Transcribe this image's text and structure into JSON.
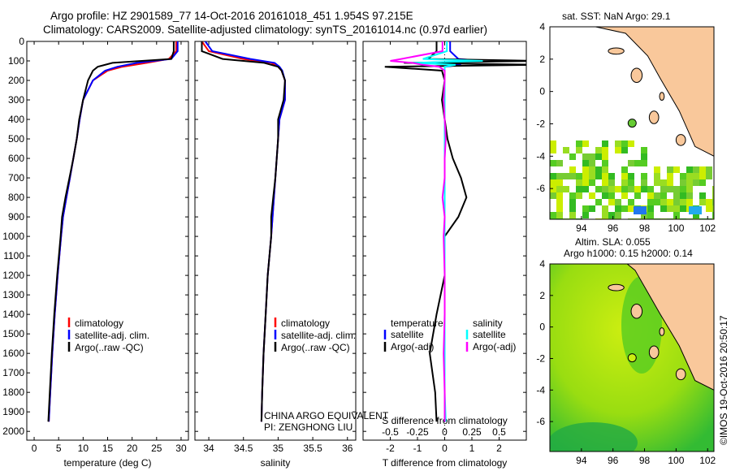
{
  "title": {
    "line1": "Argo profile: HZ 2901589_77 14-Oct-2016 20161018_451 1.954S 97.215E",
    "line2": "Climatology: CARS2009. Satellite-adjusted climatology: synTS_20161014.nc (0.97d earlier)"
  },
  "colors": {
    "clim": "#ff0000",
    "sat": "#0000ff",
    "argo": "#000000",
    "s_sat": "#00ffff",
    "s_argo": "#ff00ff",
    "land": "#f9c89b"
  },
  "chart_data": [
    {
      "type": "line",
      "id": "temperature",
      "xlabel": "temperature (deg C)",
      "ylabel": "depth",
      "xlim": [
        -1.5,
        31.5
      ],
      "ylim": [
        0,
        2045
      ],
      "xticks": [
        0,
        5,
        10,
        15,
        20,
        25,
        30
      ],
      "yticks": [
        0,
        100,
        200,
        300,
        400,
        500,
        600,
        700,
        800,
        900,
        1000,
        1100,
        1200,
        1300,
        1400,
        1500,
        1600,
        1700,
        1800,
        1900,
        2000
      ],
      "depth": [
        0,
        50,
        90,
        110,
        130,
        150,
        200,
        300,
        400,
        500,
        600,
        700,
        800,
        900,
        1000,
        1200,
        1400,
        1600,
        1800,
        1950
      ],
      "series": [
        {
          "name": "climatology",
          "color_key": "clim",
          "values": [
            29,
            29,
            27.5,
            23,
            18,
            15,
            12,
            10,
            9.3,
            8.7,
            8,
            7.3,
            6.6,
            5.9,
            5.5,
            4.8,
            4.2,
            3.7,
            3.3,
            3.0
          ]
        },
        {
          "name": "satellite-adj. clim.",
          "color_key": "sat",
          "values": [
            29.3,
            29.3,
            28,
            21,
            17,
            14.5,
            12,
            10,
            9.3,
            8.7,
            8,
            7.3,
            6.6,
            5.9,
            5.5,
            4.8,
            4.2,
            3.7,
            3.3,
            3.0
          ]
        },
        {
          "name": "Argo(..raw -QC)",
          "color_key": "argo",
          "values": [
            28.5,
            28.5,
            28,
            16,
            13,
            12,
            11,
            10,
            9.2,
            8.7,
            8,
            7.2,
            6.4,
            5.7,
            5.4,
            4.7,
            4.1,
            3.6,
            3.2,
            2.9
          ]
        }
      ],
      "legend": [
        "climatology",
        "satellite-adj. clim.",
        "Argo(..raw -QC)"
      ]
    },
    {
      "type": "line",
      "id": "salinity",
      "xlabel": "salinity",
      "xlim": [
        33.8,
        36.12
      ],
      "ylim": [
        0,
        2045
      ],
      "xticks": [
        34,
        34.5,
        35,
        35.5,
        36
      ],
      "depth": [
        0,
        50,
        90,
        110,
        130,
        150,
        200,
        300,
        400,
        500,
        600,
        700,
        800,
        900,
        1000,
        1200,
        1400,
        1600,
        1800,
        1950
      ],
      "series": [
        {
          "name": "climatology",
          "color_key": "clim",
          "values": [
            33.9,
            34.0,
            34.5,
            34.9,
            35.0,
            35.05,
            35.1,
            35.1,
            35.02,
            35.0,
            34.98,
            34.96,
            34.94,
            34.92,
            34.9,
            34.85,
            34.82,
            34.79,
            34.77,
            34.76
          ]
        },
        {
          "name": "satellite-adj. clim.",
          "color_key": "sat",
          "values": [
            33.95,
            34.05,
            34.6,
            34.95,
            35.02,
            35.06,
            35.1,
            35.1,
            35.02,
            35.0,
            34.98,
            34.96,
            34.94,
            34.92,
            34.9,
            34.85,
            34.82,
            34.79,
            34.77,
            34.76
          ]
        },
        {
          "name": "Argo(..raw -QC)",
          "color_key": "argo",
          "values": [
            33.9,
            33.9,
            34.2,
            34.8,
            35.0,
            35.05,
            35.1,
            35.08,
            35.0,
            35.0,
            34.98,
            34.96,
            34.93,
            34.9,
            34.9,
            34.85,
            34.82,
            34.79,
            34.77,
            34.76
          ]
        }
      ],
      "legend": [
        "climatology",
        "satellite-adj. clim.",
        "Argo(..raw -QC)"
      ],
      "annotations": [
        "CHINA ARGO EQUIVALENT",
        "PI: ZENGHONG LIU"
      ]
    },
    {
      "type": "line",
      "id": "differences",
      "xlabel": "T difference from climatology",
      "xlabel_top": "S difference from climatology",
      "xlim": [
        -3,
        3
      ],
      "ylim": [
        0,
        2045
      ],
      "xticks": [
        -2,
        -1,
        0,
        1,
        2
      ],
      "xticks_s": [
        "-0.5",
        "-0.25",
        "0",
        "0.25",
        "0.5"
      ],
      "xticks_s_values": [
        -0.5,
        -0.25,
        0,
        0.25,
        0.5
      ],
      "s_scale": 4,
      "depth": [
        0,
        50,
        90,
        100,
        110,
        120,
        130,
        150,
        200,
        300,
        400,
        500,
        600,
        700,
        800,
        900,
        1000,
        1200,
        1400,
        1600,
        1800,
        1950
      ],
      "series": [
        {
          "name": "temperature satellite",
          "color_key": "sat",
          "quantity": "T",
          "values": [
            0.2,
            0.2,
            0.5,
            1.4,
            -0.9,
            0.6,
            0,
            0,
            0,
            0,
            0,
            0,
            0,
            0,
            0,
            0,
            0,
            0,
            0,
            0,
            0,
            0
          ]
        },
        {
          "name": "temperature Argo(-adj)",
          "color_key": "argo",
          "quantity": "T",
          "values": [
            -0.3,
            -0.3,
            -0.6,
            3.5,
            -1.5,
            3.5,
            -2.2,
            -0.1,
            0,
            -0.1,
            0,
            0.1,
            0.3,
            0.6,
            0.8,
            0.5,
            0,
            0,
            -0.3,
            -0.55,
            -0.35,
            -0.3
          ]
        },
        {
          "name": "salinity satellite",
          "color_key": "s_sat",
          "quantity": "S",
          "values": [
            0.02,
            0.02,
            -0.2,
            0.35,
            -0.3,
            0.1,
            0,
            0,
            0,
            0,
            0,
            0,
            0,
            0,
            0,
            0,
            0,
            0,
            0,
            0,
            0,
            0.01
          ]
        },
        {
          "name": "salinity Argo(-adj)",
          "color_key": "s_argo",
          "quantity": "S",
          "values": [
            -0.02,
            -0.02,
            -0.4,
            -0.5,
            -0.3,
            -0.2,
            -0.05,
            0,
            0,
            -0.01,
            0,
            0.01,
            0,
            0,
            -0.02,
            0,
            -0.01,
            0,
            0,
            -0.01,
            0,
            0
          ]
        }
      ],
      "legend_headers": [
        "temperature",
        "salinity"
      ],
      "legend": [
        "satellite",
        "Argo(-adj)",
        "satellite",
        "Argo(-adj)"
      ]
    }
  ],
  "maps": [
    {
      "id": "sst",
      "title": "sat. SST: NaN Argo: 29.1",
      "lon_ticks": [
        "94",
        "96",
        "98",
        "100",
        "102"
      ],
      "lat_ticks": [
        "4",
        "2",
        "0",
        "-2",
        "-4",
        "-6"
      ],
      "argo_lon": 97.215,
      "argo_lat": -1.954
    },
    {
      "id": "sla",
      "title1": "Altim. SLA: 0.055",
      "title2": "Argo h1000: 0.15 h2000: 0.14",
      "lon_ticks": [
        "94",
        "96",
        "98",
        "100",
        "102"
      ],
      "lat_ticks": [
        "4",
        "2",
        "0",
        "-2",
        "-4",
        "-6"
      ],
      "argo_lon": 97.215,
      "argo_lat": -1.954
    }
  ],
  "footer": {
    "credit": "©IMOS 19-Oct-2016 20:50:17"
  }
}
